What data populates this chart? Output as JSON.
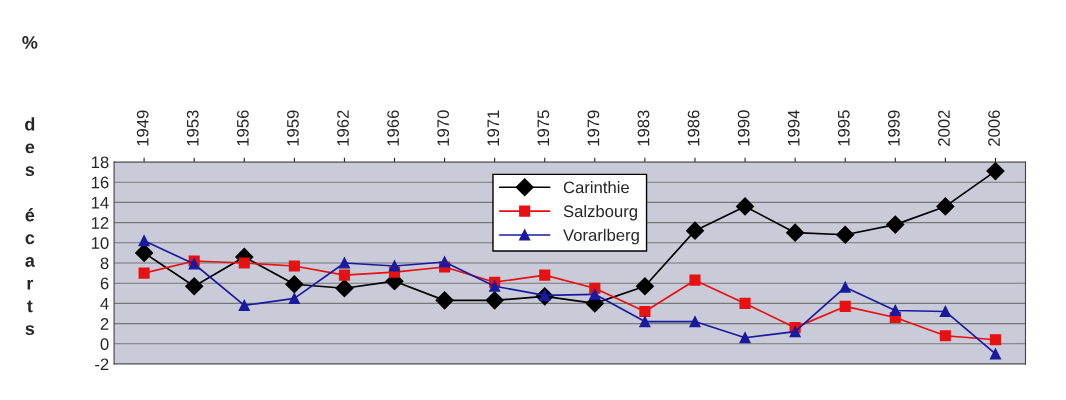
{
  "chart_data": {
    "type": "line",
    "ylabel": "% des écarts",
    "categories": [
      "1949",
      "1953",
      "1956",
      "1959",
      "1962",
      "1966",
      "1970",
      "1971",
      "1975",
      "1979",
      "1983",
      "1986",
      "1990",
      "1994",
      "1995",
      "1999",
      "2002",
      "2006"
    ],
    "series": [
      {
        "name": "Carinthie",
        "color": "#000000",
        "marker": "diamond",
        "values": [
          9.0,
          5.7,
          8.6,
          5.9,
          5.5,
          6.2,
          4.3,
          4.3,
          4.7,
          4.0,
          5.7,
          11.2,
          13.6,
          11.0,
          10.8,
          11.8,
          13.6,
          17.1
        ]
      },
      {
        "name": "Salzbourg",
        "color": "#e81010",
        "marker": "square",
        "values": [
          7.0,
          8.2,
          8.0,
          7.7,
          6.8,
          7.1,
          7.6,
          6.1,
          6.8,
          5.5,
          3.2,
          6.3,
          4.0,
          1.6,
          3.7,
          2.6,
          0.8,
          0.4
        ]
      },
      {
        "name": "Vorarlberg",
        "color": "#1a1aa0",
        "marker": "triangle",
        "values": [
          10.2,
          7.9,
          3.8,
          4.5,
          8.0,
          7.7,
          8.1,
          5.7,
          4.8,
          4.9,
          2.2,
          2.2,
          0.6,
          1.2,
          5.6,
          3.3,
          3.2,
          -1.0
        ]
      }
    ],
    "ylim": [
      -2,
      18
    ],
    "yticks": [
      -2,
      0,
      2,
      4,
      6,
      8,
      10,
      12,
      14,
      16,
      18
    ],
    "grid": "y",
    "legend": "top"
  }
}
